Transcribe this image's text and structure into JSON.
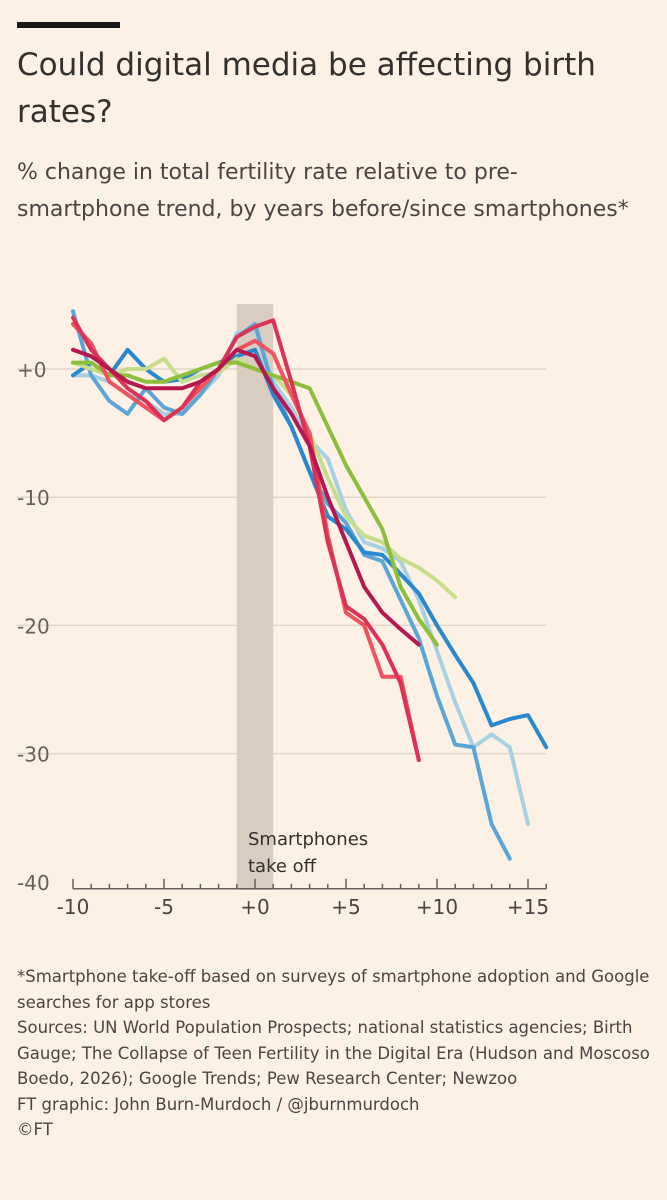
{
  "header": {
    "title": "Could digital media be affecting birth rates?",
    "subtitle": "% change in total fertility rate relative to pre-smartphone trend, by years before/since smartphones*"
  },
  "footer": {
    "note": "*Smartphone take-off based on surveys of smartphone adoption and Google searches for app stores",
    "sources": "Sources: UN World Population Prospects; national statistics agencies; Birth Gauge; The Collapse of Teen Fertility in the Digital Era (Hudson and Moscoso Boedo, 2026); Google Trends; Pew Research Center; Newzoo",
    "credit": "FT graphic: John Burn-Murdoch / @jburnmurdoch",
    "copyright": "©FT"
  },
  "chart_data": {
    "type": "line",
    "xlim": [
      -10,
      16
    ],
    "ylim": [
      -40,
      5
    ],
    "x_ticks": [
      -10,
      -5,
      0,
      5,
      10,
      15
    ],
    "x_tick_labels": [
      "-10",
      "-5",
      "+0",
      "+5",
      "+10",
      "+15"
    ],
    "y_ticks": [
      0,
      -10,
      -20,
      -30,
      -40
    ],
    "y_tick_labels": [
      "+0",
      "-10",
      "-20",
      "-30",
      "-40"
    ],
    "grid": "horizontal",
    "annotation": {
      "text_lines": [
        "Smartphones",
        "take off"
      ],
      "band": [
        -1,
        1
      ],
      "band_color": "#D9CCC1"
    },
    "series": [
      {
        "color": "#A7D1E3",
        "x": [
          -10,
          -9,
          -8,
          -7,
          -6,
          -5,
          -4,
          -3,
          -2,
          -1,
          0,
          1,
          2,
          3,
          4,
          5,
          6,
          7,
          8,
          9,
          10,
          11,
          12,
          13,
          14,
          15
        ],
        "y": [
          -0.5,
          -0.5,
          -1,
          -2,
          -2.5,
          -3.5,
          -3.5,
          -2,
          -0.5,
          2.8,
          3,
          -1,
          -3,
          -5.5,
          -7,
          -11,
          -13.5,
          -14,
          -15,
          -18,
          -22,
          -26,
          -29.5,
          -28.5,
          -29.5,
          -35.5
        ]
      },
      {
        "color": "#5BA6D6",
        "x": [
          -10,
          -9,
          -8,
          -7,
          -6,
          -5,
          -4,
          -3,
          -2,
          -1,
          0,
          1,
          2,
          3,
          4,
          5,
          6,
          7,
          8,
          9,
          10,
          11,
          12,
          13,
          14
        ],
        "y": [
          4.5,
          -0.5,
          -2.5,
          -3.5,
          -1.5,
          -3,
          -3.5,
          -2,
          0,
          2.5,
          3.5,
          -1.5,
          -4.5,
          -8,
          -10.5,
          -12,
          -14.5,
          -15,
          -18,
          -21,
          -25.5,
          -29.3,
          -29.5,
          -35.5,
          -38.2
        ]
      },
      {
        "color": "#2A88CC",
        "x": [
          -10,
          -9,
          -8,
          -7,
          -6,
          -5,
          -4,
          -3,
          -2,
          -1,
          0,
          1,
          2,
          3,
          4,
          5,
          6,
          7,
          8,
          9,
          10,
          11,
          12,
          13,
          14,
          15,
          16
        ],
        "y": [
          -0.5,
          0.5,
          -0.5,
          1.5,
          0,
          -1,
          -0.8,
          0,
          0.5,
          1,
          1.5,
          -2,
          -4.5,
          -8,
          -11.5,
          -12.5,
          -14.3,
          -14.5,
          -16,
          -17.5,
          -20,
          -22.3,
          -24.5,
          -27.8,
          -27.3,
          -27,
          -29.5
        ]
      },
      {
        "color": "#C6DE8B",
        "x": [
          -10,
          -9,
          -8,
          -7,
          -6,
          -5,
          -4,
          -3,
          -2,
          -1,
          0,
          1,
          2,
          3,
          4,
          5,
          6,
          7,
          8,
          9,
          10,
          11
        ],
        "y": [
          0.5,
          0,
          -0.5,
          0,
          0,
          0.8,
          -1,
          -0.5,
          -0.3,
          0.8,
          0,
          -0.5,
          -2,
          -5,
          -8.5,
          -11.5,
          -13,
          -13.5,
          -14.8,
          -15.5,
          -16.5,
          -17.8
        ]
      },
      {
        "color": "#8DBE3C",
        "x": [
          -10,
          -9,
          -8,
          -7,
          -6,
          -5,
          -4,
          -3,
          -2,
          -1,
          0,
          1,
          2,
          3,
          4,
          5,
          6,
          7,
          8,
          9,
          10
        ],
        "y": [
          0.5,
          0.5,
          -0.5,
          -0.5,
          -1,
          -1,
          -0.5,
          0,
          0.5,
          0.5,
          0,
          -0.5,
          -1,
          -1.5,
          -4.5,
          -7.5,
          -10,
          -12.5,
          -17,
          -19.5,
          -21.5
        ]
      },
      {
        "color": "#F0535E",
        "x": [
          -10,
          -9,
          -8,
          -7,
          -6,
          -5,
          -4,
          -3,
          -2,
          -1,
          0,
          1,
          2,
          3,
          4,
          5,
          6,
          7,
          8,
          9
        ],
        "y": [
          3.5,
          2,
          -1,
          -2,
          -3,
          -4,
          -3,
          -1.5,
          0,
          1.5,
          2.2,
          1.2,
          -2,
          -5,
          -13,
          -19,
          -20,
          -24,
          -24,
          -30.5
        ]
      },
      {
        "color": "#DC3256",
        "x": [
          -10,
          -9,
          -8,
          -7,
          -6,
          -5,
          -4,
          -3,
          -2,
          -1,
          0,
          1,
          2,
          3,
          4,
          5,
          6,
          7,
          8,
          9
        ],
        "y": [
          4,
          1.5,
          0,
          -1.5,
          -2.5,
          -4,
          -3,
          -1,
          0,
          2.5,
          3.3,
          3.8,
          -1,
          -6,
          -13.5,
          -18.5,
          -19.5,
          -21.5,
          -24.5,
          -30.5
        ]
      },
      {
        "color": "#B5174F",
        "x": [
          -10,
          -9,
          -8,
          -7,
          -6,
          -5,
          -4,
          -3,
          -2,
          -1,
          0,
          1,
          2,
          3,
          4,
          5,
          6,
          7,
          8,
          9
        ],
        "y": [
          1.5,
          1,
          0,
          -1,
          -1.5,
          -1.5,
          -1.5,
          -1,
          0,
          1.5,
          1,
          -1.5,
          -3.5,
          -6,
          -10,
          -13.5,
          -17,
          -19,
          -20.3,
          -21.5
        ]
      }
    ]
  }
}
